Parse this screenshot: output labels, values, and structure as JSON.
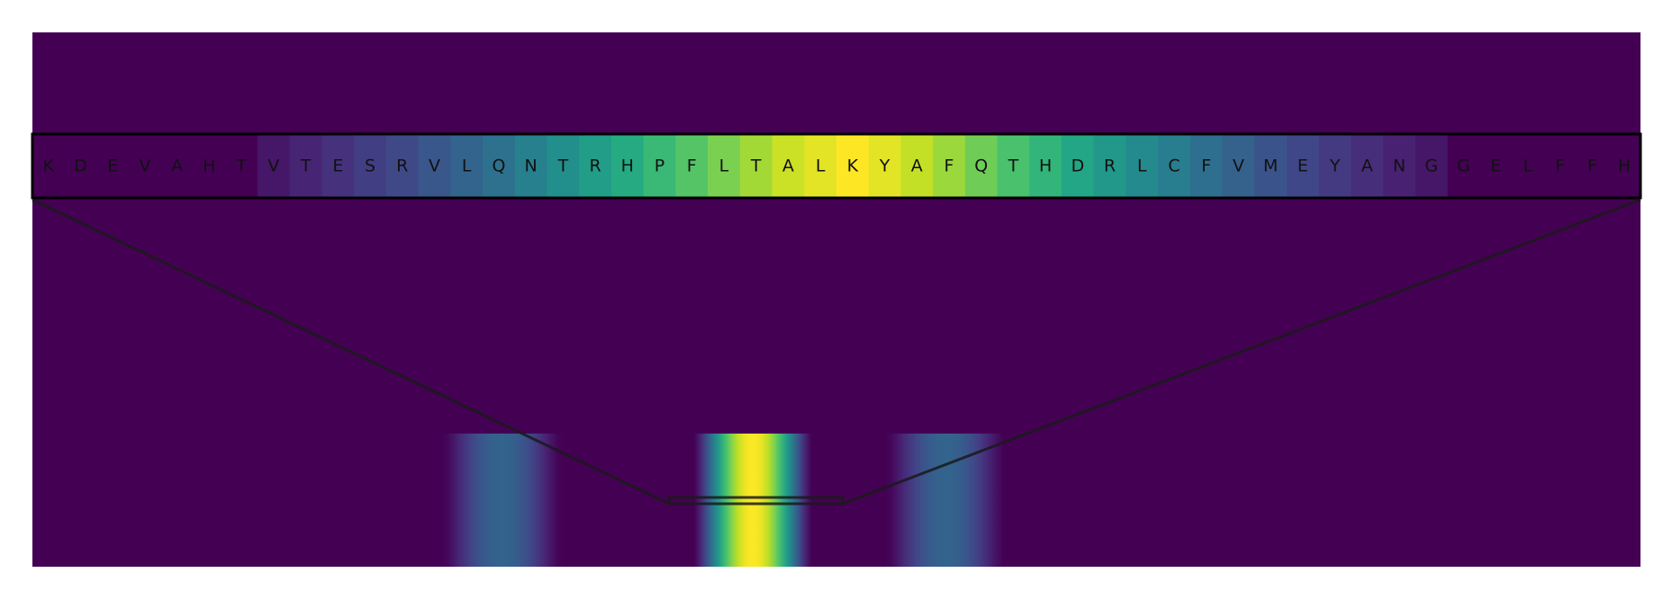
{
  "chart_data": {
    "type": "heatmap",
    "colormap": "viridis",
    "background_color": "#440154",
    "value_range": [
      0,
      1
    ],
    "grid": false,
    "legend": "none",
    "zoom_panel": {
      "residues": [
        "K",
        "D",
        "E",
        "V",
        "A",
        "H",
        "T",
        "V",
        "T",
        "E",
        "S",
        "R",
        "V",
        "L",
        "Q",
        "N",
        "T",
        "R",
        "H",
        "P",
        "F",
        "L",
        "T",
        "A",
        "L",
        "K",
        "Y",
        "A",
        "F",
        "Q",
        "T",
        "H",
        "D",
        "R",
        "L",
        "C",
        "F",
        "V",
        "M",
        "E",
        "Y",
        "A",
        "N",
        "G",
        "G",
        "E",
        "L",
        "F",
        "F",
        "H"
      ],
      "values": [
        0.0,
        0.0,
        0.0,
        0.0,
        0.0,
        0.0,
        0.0,
        0.06,
        0.1,
        0.14,
        0.18,
        0.22,
        0.27,
        0.32,
        0.37,
        0.43,
        0.49,
        0.55,
        0.61,
        0.67,
        0.73,
        0.8,
        0.86,
        0.92,
        0.96,
        1.0,
        0.96,
        0.91,
        0.85,
        0.78,
        0.71,
        0.65,
        0.59,
        0.53,
        0.47,
        0.42,
        0.36,
        0.31,
        0.26,
        0.21,
        0.17,
        0.13,
        0.09,
        0.06,
        0.0,
        0.0,
        0.0,
        0.0,
        0.0,
        0.0
      ]
    },
    "full_sequence_profile": {
      "sequence_length": 500,
      "peaks": [
        {
          "center_position": 146,
          "half_width": 18,
          "peak_value": 0.32
        },
        {
          "center_position": 224,
          "half_width": 18,
          "peak_value": 1.0
        },
        {
          "center_position": 284,
          "half_width": 18,
          "peak_value": 0.32
        }
      ],
      "highlighted_window": [
        198,
        252
      ]
    }
  }
}
